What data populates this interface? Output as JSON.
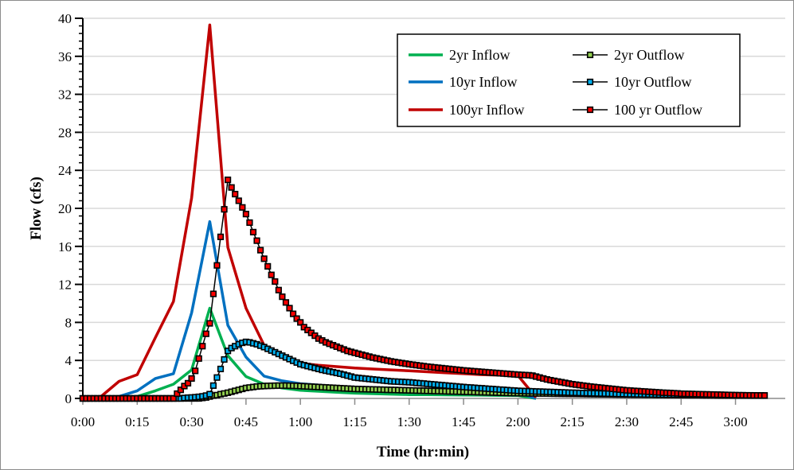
{
  "chart_data": {
    "type": "line",
    "xlabel": "Time (hr:min)",
    "ylabel": "Flow (cfs)",
    "xlim_min": [
      0,
      188
    ],
    "ylim": [
      0,
      40
    ],
    "x_ticks": [
      "0:00",
      "0:15",
      "0:30",
      "0:45",
      "1:00",
      "1:15",
      "1:30",
      "1:45",
      "2:00",
      "2:15",
      "2:30",
      "2:45",
      "3:00"
    ],
    "y_ticks": [
      0,
      4,
      8,
      12,
      16,
      20,
      24,
      28,
      32,
      36,
      40
    ],
    "grid": "horizontal",
    "legend_placement": "top-right",
    "inflow_time_min": [
      0,
      5,
      10,
      15,
      20,
      25,
      30,
      35,
      40,
      45,
      50,
      55,
      60,
      65,
      70,
      75,
      80,
      85,
      90,
      95,
      100,
      105,
      110,
      115,
      120,
      125
    ],
    "outflow_time_start_min": 0,
    "outflow_time_step_min": 1,
    "series": [
      {
        "name": "2yr Inflow",
        "kind": "inflow",
        "color": "#00b050",
        "values": [
          0,
          0,
          0,
          0.2,
          0.8,
          1.5,
          3.0,
          9.5,
          4.5,
          2.3,
          1.5,
          1.1,
          0.85,
          0.75,
          0.65,
          0.55,
          0.5,
          0.45,
          0.4,
          0.4,
          0.38,
          0.36,
          0.34,
          0.32,
          0.3,
          0
        ]
      },
      {
        "name": "10yr Inflow",
        "kind": "inflow",
        "color": "#0070c0",
        "values": [
          0,
          0,
          0.2,
          0.8,
          2.1,
          2.6,
          9.0,
          18.6,
          7.7,
          4.35,
          2.35,
          1.85,
          1.55,
          1.4,
          1.25,
          1.1,
          1.0,
          0.95,
          0.9,
          0.85,
          0.8,
          0.75,
          0.7,
          0.65,
          0.6,
          0
        ]
      },
      {
        "name": "100yr Inflow",
        "kind": "inflow",
        "color": "#c00000",
        "values": [
          0,
          0.2,
          1.8,
          2.5,
          6.4,
          10.2,
          21.1,
          39.3,
          15.9,
          9.5,
          5.6,
          4.3,
          3.7,
          3.5,
          3.35,
          3.2,
          3.1,
          3.0,
          2.9,
          2.8,
          2.7,
          2.6,
          2.5,
          2.45,
          2.4,
          0.1
        ]
      },
      {
        "name": "2yr Outflow",
        "kind": "outflow",
        "color": "#92d050",
        "values": [
          0,
          0,
          0,
          0,
          0,
          0,
          0,
          0,
          0,
          0,
          0,
          0,
          0,
          0,
          0,
          0,
          0,
          0,
          0,
          0,
          0,
          0,
          0,
          0,
          0,
          0,
          0,
          0,
          0,
          0,
          0,
          0,
          0,
          0.05,
          0.1,
          0.2,
          0.3,
          0.35,
          0.45,
          0.52,
          0.6,
          0.7,
          0.8,
          0.9,
          1.0,
          1.1,
          1.15,
          1.2,
          1.25,
          1.28,
          1.3,
          1.32,
          1.33,
          1.34,
          1.35,
          1.35,
          1.35,
          1.34,
          1.33,
          1.32,
          1.3,
          1.28,
          1.26,
          1.24,
          1.22,
          1.2,
          1.18,
          1.16,
          1.14,
          1.12,
          1.1,
          1.08,
          1.06,
          1.04,
          1.02,
          1.0,
          0.99,
          0.98,
          0.97,
          0.96,
          0.95,
          0.94,
          0.93,
          0.92,
          0.91,
          0.9,
          0.89,
          0.88,
          0.87,
          0.86,
          0.85,
          0.84,
          0.83,
          0.82,
          0.81,
          0.8,
          0.79,
          0.78,
          0.77,
          0.76,
          0.75,
          0.74,
          0.73,
          0.72,
          0.71,
          0.7,
          0.69,
          0.68,
          0.67,
          0.66,
          0.65,
          0.64,
          0.63,
          0.62,
          0.61,
          0.6,
          0.59,
          0.58,
          0.57,
          0.56,
          0.55,
          0.545,
          0.54,
          0.535,
          0.53,
          0.525,
          0.52,
          0.515,
          0.51,
          0.505,
          0.5,
          0.495,
          0.49,
          0.485,
          0.48,
          0.475,
          0.47,
          0.465,
          0.46,
          0.455,
          0.45,
          0.445,
          0.44,
          0.435,
          0.43,
          0.425,
          0.42,
          0.415,
          0.41,
          0.405,
          0.4,
          0.4,
          0.39,
          0.39,
          0.39,
          0.38,
          0.38,
          0.38,
          0.37,
          0.37,
          0.37,
          0.36,
          0.36,
          0.36,
          0.35,
          0.35,
          0.35,
          0.34,
          0.34,
          0.34,
          0.34,
          0.33,
          0.33,
          0.33,
          0.33,
          0.32,
          0.32,
          0.32,
          0.32,
          0.31,
          0.31,
          0.31,
          0.31,
          0.31,
          0.3,
          0.3,
          0.3,
          0.3,
          0.3
        ]
      },
      {
        "name": "10yr Outflow",
        "kind": "outflow",
        "color": "#00b0f0",
        "values": [
          0,
          0,
          0,
          0,
          0,
          0,
          0,
          0,
          0,
          0,
          0,
          0,
          0,
          0,
          0,
          0,
          0,
          0,
          0,
          0,
          0,
          0,
          0,
          0,
          0,
          0,
          0,
          0,
          0.05,
          0.08,
          0.1,
          0.13,
          0.17,
          0.22,
          0.3,
          0.45,
          1.35,
          2.2,
          3.1,
          4.1,
          5.0,
          5.3,
          5.5,
          5.7,
          5.85,
          5.95,
          5.9,
          5.8,
          5.7,
          5.55,
          5.4,
          5.22,
          5.04,
          4.86,
          4.68,
          4.5,
          4.32,
          4.14,
          3.96,
          3.78,
          3.6,
          3.5,
          3.4,
          3.3,
          3.2,
          3.1,
          3.0,
          2.92,
          2.84,
          2.76,
          2.68,
          2.6,
          2.5,
          2.4,
          2.3,
          2.2,
          2.16,
          2.12,
          2.08,
          2.04,
          2.0,
          1.96,
          1.92,
          1.88,
          1.84,
          1.8,
          1.78,
          1.76,
          1.74,
          1.72,
          1.7,
          1.67,
          1.63,
          1.6,
          1.57,
          1.53,
          1.5,
          1.47,
          1.43,
          1.4,
          1.37,
          1.33,
          1.3,
          1.27,
          1.23,
          1.2,
          1.17,
          1.15,
          1.12,
          1.09,
          1.07,
          1.04,
          1.01,
          0.99,
          0.96,
          0.93,
          0.91,
          0.88,
          0.85,
          0.83,
          0.8,
          0.79,
          0.77,
          0.76,
          0.75,
          0.73,
          0.72,
          0.71,
          0.69,
          0.68,
          0.67,
          0.65,
          0.64,
          0.63,
          0.61,
          0.6,
          0.59,
          0.58,
          0.57,
          0.56,
          0.55,
          0.54,
          0.53,
          0.52,
          0.51,
          0.5,
          0.49,
          0.48,
          0.47,
          0.46,
          0.45,
          0.44,
          0.44,
          0.43,
          0.43,
          0.42,
          0.42,
          0.41,
          0.41,
          0.4,
          0.4,
          0.39,
          0.39,
          0.38,
          0.38,
          0.37,
          0.37,
          0.36,
          0.36,
          0.35,
          0.35,
          0.35,
          0.34,
          0.34,
          0.34,
          0.33,
          0.33,
          0.33,
          0.32,
          0.32,
          0.32,
          0.31,
          0.31,
          0.31,
          0.3,
          0.3,
          0.3,
          0.3,
          0.3
        ]
      },
      {
        "name": "100 yr Outflow",
        "kind": "outflow",
        "color": "#ff0000",
        "values": [
          0,
          0,
          0,
          0,
          0,
          0,
          0,
          0,
          0,
          0,
          0,
          0,
          0,
          0,
          0,
          0,
          0,
          0,
          0,
          0,
          0,
          0,
          0,
          0,
          0,
          0,
          0.5,
          0.9,
          1.3,
          1.6,
          2.1,
          2.9,
          4.2,
          5.5,
          6.8,
          7.9,
          11.0,
          14.0,
          17.0,
          19.9,
          23.0,
          22.2,
          21.5,
          20.8,
          20.1,
          19.4,
          18.5,
          17.5,
          16.6,
          15.6,
          14.7,
          13.9,
          13.0,
          12.3,
          11.4,
          10.7,
          10.1,
          9.5,
          8.9,
          8.4,
          8.0,
          7.5,
          7.2,
          6.9,
          6.6,
          6.3,
          6.1,
          5.9,
          5.75,
          5.6,
          5.45,
          5.3,
          5.15,
          5.0,
          4.9,
          4.8,
          4.7,
          4.6,
          4.5,
          4.4,
          4.3,
          4.22,
          4.14,
          4.06,
          3.98,
          3.9,
          3.84,
          3.78,
          3.72,
          3.66,
          3.6,
          3.55,
          3.5,
          3.45,
          3.4,
          3.35,
          3.31,
          3.27,
          3.23,
          3.19,
          3.15,
          3.11,
          3.07,
          3.03,
          2.99,
          2.95,
          2.92,
          2.89,
          2.86,
          2.83,
          2.8,
          2.77,
          2.74,
          2.71,
          2.68,
          2.65,
          2.62,
          2.59,
          2.56,
          2.53,
          2.5,
          2.48,
          2.46,
          2.44,
          2.4,
          2.3,
          2.2,
          2.1,
          2.0,
          1.92,
          1.85,
          1.78,
          1.71,
          1.64,
          1.57,
          1.5,
          1.45,
          1.4,
          1.35,
          1.3,
          1.25,
          1.21,
          1.17,
          1.13,
          1.09,
          1.05,
          1.01,
          0.97,
          0.93,
          0.89,
          0.85,
          0.83,
          0.8,
          0.78,
          0.75,
          0.73,
          0.7,
          0.68,
          0.65,
          0.63,
          0.6,
          0.59,
          0.57,
          0.55,
          0.53,
          0.5,
          0.49,
          0.48,
          0.47,
          0.46,
          0.45,
          0.44,
          0.43,
          0.42,
          0.41,
          0.4,
          0.39,
          0.38,
          0.37,
          0.36,
          0.35,
          0.34,
          0.34,
          0.33,
          0.33,
          0.32,
          0.32,
          0.31,
          0.31
        ]
      }
    ]
  }
}
